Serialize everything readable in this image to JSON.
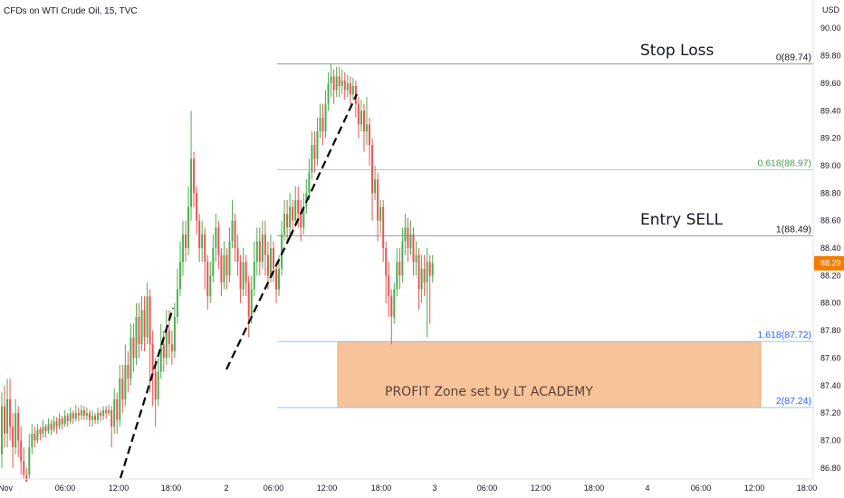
{
  "header": {
    "title": "CFDs on WTI Crude Oil, 15, TVC"
  },
  "chart_data": {
    "type": "candlestick",
    "symbol": "CFDs on WTI Crude Oil",
    "interval": "15",
    "source": "TVC",
    "currency": "USD",
    "last_price": "88.29",
    "ylim": [
      86.72,
      90.12
    ],
    "y_ticks": [
      "90.00",
      "89.80",
      "89.60",
      "89.40",
      "89.20",
      "89.00",
      "88.80",
      "88.60",
      "88.40",
      "88.20",
      "88.00",
      "87.80",
      "87.60",
      "87.40",
      "87.20",
      "87.00",
      "86.80"
    ],
    "x_ticks": [
      "Nov",
      "06:00",
      "12:00",
      "18:00",
      "2",
      "06:00",
      "12:00",
      "18:00",
      "3",
      "06:00",
      "12:00",
      "18:00",
      "4",
      "06:00",
      "12:00",
      "18:00"
    ],
    "fib_levels": [
      {
        "label": "0(89.74)",
        "value": 89.74,
        "color": "#131722"
      },
      {
        "label": "0.618(88.97)",
        "value": 88.97,
        "color": "#43a047"
      },
      {
        "label": "1(88.49)",
        "value": 88.49,
        "color": "#131722"
      },
      {
        "label": "1.618(87.72)",
        "value": 87.72,
        "color": "#2962ff"
      },
      {
        "label": "2(87.24)",
        "value": 87.24,
        "color": "#2962ff"
      }
    ],
    "annotations": {
      "stop_loss": "Stop Loss",
      "entry": "Entry SELL",
      "profit_zone": "PROFIT Zone set by LT ACADEMY"
    },
    "colors": {
      "up": "#26a69a",
      "up_bright": "#4caf50",
      "down": "#ef5350",
      "profit_zone_fill": "#f7c39a",
      "profit_zone_border": "#f0a868",
      "price_badge": "#f57c00"
    },
    "candles": [
      [
        86.9,
        87.25,
        86.8,
        87.35
      ],
      [
        87.25,
        87.05,
        86.95,
        87.4
      ],
      [
        87.05,
        87.3,
        86.95,
        87.45
      ],
      [
        87.3,
        87.1,
        87.0,
        87.45
      ],
      [
        87.1,
        86.95,
        86.8,
        87.2
      ],
      [
        86.95,
        87.2,
        86.9,
        87.3
      ],
      [
        87.2,
        87.0,
        86.88,
        87.25
      ],
      [
        87.0,
        86.85,
        86.75,
        87.1
      ],
      [
        86.85,
        86.75,
        86.72,
        86.95
      ],
      [
        86.75,
        86.7,
        86.7,
        86.8
      ],
      [
        86.75,
        86.95,
        86.72,
        87.05
      ],
      [
        86.95,
        87.05,
        86.9,
        87.12
      ],
      [
        87.05,
        87.0,
        86.95,
        87.1
      ],
      [
        87.0,
        87.08,
        86.98,
        87.12
      ],
      [
        87.08,
        87.05,
        87.0,
        87.1
      ],
      [
        87.05,
        87.1,
        87.02,
        87.15
      ],
      [
        87.1,
        87.07,
        87.02,
        87.12
      ],
      [
        87.07,
        87.12,
        87.05,
        87.16
      ],
      [
        87.12,
        87.08,
        87.04,
        87.15
      ],
      [
        87.08,
        87.14,
        87.06,
        87.18
      ],
      [
        87.14,
        87.1,
        87.05,
        87.17
      ],
      [
        87.1,
        87.16,
        87.08,
        87.2
      ],
      [
        87.16,
        87.12,
        87.08,
        87.18
      ],
      [
        87.12,
        87.18,
        87.1,
        87.22
      ],
      [
        87.18,
        87.14,
        87.1,
        87.2
      ],
      [
        87.14,
        87.2,
        87.12,
        87.24
      ],
      [
        87.2,
        87.16,
        87.12,
        87.22
      ],
      [
        87.16,
        87.2,
        87.14,
        87.26
      ],
      [
        87.2,
        87.18,
        87.14,
        87.24
      ],
      [
        87.18,
        87.22,
        87.15,
        87.26
      ],
      [
        87.22,
        87.18,
        87.15,
        87.25
      ],
      [
        87.18,
        87.2,
        87.15,
        87.24
      ],
      [
        87.2,
        87.15,
        87.1,
        87.22
      ],
      [
        87.15,
        87.18,
        87.1,
        87.22
      ],
      [
        87.18,
        87.15,
        87.12,
        87.2
      ],
      [
        87.15,
        87.2,
        87.12,
        87.24
      ],
      [
        87.2,
        87.18,
        87.14,
        87.22
      ],
      [
        87.18,
        87.22,
        87.15,
        87.25
      ],
      [
        87.22,
        87.2,
        87.16,
        87.25
      ],
      [
        87.2,
        87.22,
        87.18,
        87.26
      ],
      [
        87.22,
        87.1,
        86.95,
        87.25
      ],
      [
        87.1,
        87.3,
        87.05,
        87.38
      ],
      [
        87.3,
        87.15,
        87.05,
        87.35
      ],
      [
        87.15,
        87.45,
        87.1,
        87.55
      ],
      [
        87.45,
        87.3,
        87.2,
        87.55
      ],
      [
        87.3,
        87.55,
        87.25,
        87.7
      ],
      [
        87.55,
        87.45,
        87.35,
        87.65
      ],
      [
        87.45,
        87.75,
        87.4,
        87.85
      ],
      [
        87.75,
        87.6,
        87.5,
        87.85
      ],
      [
        87.6,
        87.9,
        87.55,
        88.0
      ],
      [
        87.9,
        87.7,
        87.6,
        88.0
      ],
      [
        87.7,
        87.95,
        87.65,
        88.05
      ],
      [
        87.95,
        87.75,
        87.65,
        88.05
      ],
      [
        87.75,
        88.05,
        87.7,
        88.15
      ],
      [
        88.05,
        87.7,
        87.35,
        88.1
      ],
      [
        87.7,
        87.5,
        87.25,
        87.8
      ],
      [
        87.5,
        87.3,
        87.1,
        87.6
      ],
      [
        87.3,
        87.5,
        87.25,
        87.6
      ],
      [
        87.5,
        87.7,
        87.45,
        87.85
      ],
      [
        87.7,
        87.6,
        87.5,
        87.8
      ],
      [
        87.6,
        87.8,
        87.55,
        87.95
      ],
      [
        87.8,
        87.7,
        87.6,
        87.95
      ],
      [
        87.7,
        87.65,
        87.55,
        87.8
      ],
      [
        87.65,
        87.9,
        87.6,
        88.0
      ],
      [
        87.9,
        88.1,
        87.85,
        88.25
      ],
      [
        88.1,
        88.3,
        88.05,
        88.45
      ],
      [
        88.3,
        88.5,
        88.2,
        88.6
      ],
      [
        88.5,
        88.4,
        88.3,
        88.6
      ],
      [
        88.4,
        88.7,
        88.35,
        88.85
      ],
      [
        88.7,
        89.05,
        88.6,
        89.4
      ],
      [
        89.05,
        88.8,
        88.7,
        89.1
      ],
      [
        88.8,
        88.6,
        88.5,
        88.85
      ],
      [
        88.6,
        88.4,
        88.3,
        88.65
      ],
      [
        88.4,
        88.5,
        88.3,
        88.6
      ],
      [
        88.5,
        88.3,
        88.1,
        88.55
      ],
      [
        88.3,
        88.05,
        87.95,
        88.35
      ],
      [
        88.05,
        88.2,
        88.0,
        88.3
      ],
      [
        88.2,
        88.4,
        88.15,
        88.5
      ],
      [
        88.4,
        88.55,
        88.3,
        88.65
      ],
      [
        88.55,
        88.35,
        88.25,
        88.6
      ],
      [
        88.35,
        88.15,
        88.05,
        88.4
      ],
      [
        88.15,
        88.35,
        88.1,
        88.45
      ],
      [
        88.35,
        88.2,
        88.1,
        88.4
      ],
      [
        88.2,
        88.45,
        88.15,
        88.55
      ],
      [
        88.45,
        88.6,
        88.4,
        88.75
      ],
      [
        88.6,
        88.4,
        88.3,
        88.65
      ],
      [
        88.4,
        88.3,
        88.2,
        88.5
      ],
      [
        88.3,
        88.1,
        88.0,
        88.35
      ],
      [
        88.1,
        88.3,
        88.05,
        88.4
      ],
      [
        88.3,
        88.15,
        88.05,
        88.35
      ],
      [
        88.15,
        87.9,
        87.75,
        88.2
      ],
      [
        87.9,
        88.1,
        87.85,
        88.2
      ],
      [
        88.1,
        88.3,
        88.05,
        88.45
      ],
      [
        88.3,
        88.45,
        88.2,
        88.55
      ],
      [
        88.45,
        88.3,
        88.2,
        88.55
      ],
      [
        88.3,
        88.5,
        88.25,
        88.6
      ],
      [
        88.5,
        88.35,
        88.2,
        88.6
      ],
      [
        88.35,
        88.2,
        88.1,
        88.45
      ],
      [
        88.2,
        88.4,
        88.15,
        88.5
      ],
      [
        88.4,
        88.25,
        88.15,
        88.45
      ],
      [
        88.25,
        88.1,
        88.0,
        88.3
      ],
      [
        88.1,
        88.25,
        88.05,
        88.35
      ],
      [
        88.25,
        88.5,
        88.2,
        88.6
      ],
      [
        88.5,
        88.65,
        88.45,
        88.75
      ],
      [
        88.65,
        88.55,
        88.45,
        88.75
      ],
      [
        88.55,
        88.7,
        88.5,
        88.8
      ],
      [
        88.7,
        88.6,
        88.5,
        88.75
      ],
      [
        88.6,
        88.75,
        88.55,
        88.85
      ],
      [
        88.75,
        88.65,
        88.55,
        88.85
      ],
      [
        88.65,
        88.55,
        88.45,
        88.75
      ],
      [
        88.55,
        88.7,
        88.5,
        88.8
      ],
      [
        88.7,
        88.8,
        88.65,
        88.9
      ],
      [
        88.8,
        88.95,
        88.75,
        89.05
      ],
      [
        88.95,
        89.15,
        88.9,
        89.25
      ],
      [
        89.15,
        89.05,
        88.95,
        89.25
      ],
      [
        89.05,
        89.25,
        89.0,
        89.35
      ],
      [
        89.25,
        89.35,
        89.2,
        89.45
      ],
      [
        89.35,
        89.25,
        89.15,
        89.45
      ],
      [
        89.25,
        89.45,
        89.2,
        89.55
      ],
      [
        89.45,
        89.6,
        89.4,
        89.68
      ],
      [
        89.6,
        89.65,
        89.5,
        89.74
      ],
      [
        89.65,
        89.55,
        89.45,
        89.7
      ],
      [
        89.55,
        89.65,
        89.5,
        89.72
      ],
      [
        89.65,
        89.58,
        89.5,
        89.72
      ],
      [
        89.58,
        89.62,
        89.52,
        89.7
      ],
      [
        89.62,
        89.55,
        89.48,
        89.68
      ],
      [
        89.55,
        89.6,
        89.5,
        89.66
      ],
      [
        89.6,
        89.52,
        89.45,
        89.65
      ],
      [
        89.52,
        89.58,
        89.48,
        89.64
      ],
      [
        89.58,
        89.45,
        89.35,
        89.62
      ],
      [
        89.45,
        89.3,
        89.2,
        89.5
      ],
      [
        89.3,
        89.4,
        89.25,
        89.48
      ],
      [
        89.4,
        89.25,
        89.1,
        89.45
      ],
      [
        89.25,
        89.3,
        89.15,
        89.5
      ],
      [
        89.3,
        89.15,
        89.0,
        89.35
      ],
      [
        89.15,
        88.8,
        88.6,
        89.2
      ],
      [
        88.8,
        88.9,
        88.75,
        89.0
      ],
      [
        88.9,
        88.6,
        88.45,
        88.95
      ],
      [
        88.6,
        88.7,
        88.5,
        88.75
      ],
      [
        88.7,
        88.4,
        88.3,
        88.75
      ],
      [
        88.4,
        88.2,
        88.0,
        88.45
      ],
      [
        88.2,
        88.05,
        87.9,
        88.3
      ],
      [
        88.05,
        87.9,
        87.7,
        88.1
      ],
      [
        87.9,
        88.1,
        87.85,
        88.15
      ],
      [
        88.1,
        88.3,
        88.05,
        88.4
      ],
      [
        88.3,
        88.2,
        88.1,
        88.4
      ],
      [
        88.2,
        88.45,
        88.15,
        88.55
      ],
      [
        88.45,
        88.55,
        88.35,
        88.65
      ],
      [
        88.55,
        88.4,
        88.3,
        88.62
      ],
      [
        88.4,
        88.5,
        88.35,
        88.6
      ],
      [
        88.5,
        88.3,
        88.2,
        88.55
      ],
      [
        88.3,
        88.35,
        88.2,
        88.45
      ],
      [
        88.35,
        88.1,
        87.95,
        88.4
      ],
      [
        88.1,
        88.25,
        88.0,
        88.35
      ],
      [
        88.25,
        88.15,
        88.05,
        88.35
      ],
      [
        88.15,
        88.3,
        87.75,
        88.4
      ],
      [
        88.3,
        88.2,
        87.85,
        88.35
      ],
      [
        88.2,
        88.29,
        88.15,
        88.35
      ]
    ]
  }
}
